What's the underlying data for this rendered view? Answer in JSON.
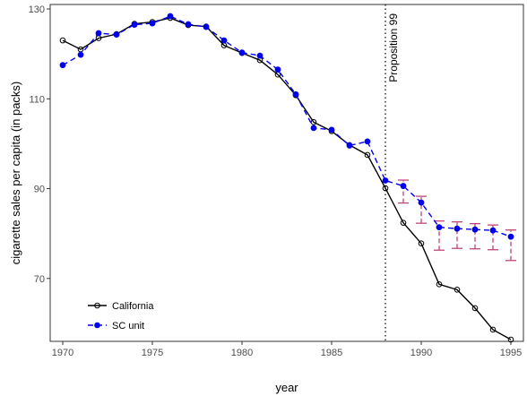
{
  "chart_data": {
    "type": "line",
    "xlabel": "year",
    "ylabel": "cigarette sales per capita (in packs)",
    "xlim": [
      1969.3,
      1995.7
    ],
    "ylim": [
      56,
      131
    ],
    "xticks": [
      1970,
      1975,
      1980,
      1985,
      1990,
      1995
    ],
    "yticks": [
      70,
      90,
      110,
      130
    ],
    "grid": false,
    "legend_position": "bottom-left",
    "x": [
      1970,
      1971,
      1972,
      1973,
      1974,
      1975,
      1976,
      1977,
      1978,
      1979,
      1980,
      1981,
      1982,
      1983,
      1984,
      1985,
      1986,
      1987,
      1988,
      1989,
      1990,
      1991,
      1992,
      1993,
      1994,
      1995
    ],
    "series": [
      {
        "name": "California",
        "color": "#000000",
        "marker": "open-circle",
        "line_style": "solid",
        "values": [
          123.0,
          121.0,
          123.5,
          124.4,
          126.7,
          127.1,
          128.0,
          126.4,
          126.1,
          121.9,
          120.2,
          118.6,
          115.4,
          110.8,
          104.8,
          102.8,
          99.7,
          97.5,
          90.1,
          82.4,
          77.8,
          68.7,
          67.5,
          63.4,
          58.6,
          56.4
        ]
      },
      {
        "name": "SC unit",
        "color": "#0000ee",
        "marker": "filled-circle",
        "line_style": "dashed",
        "values": [
          117.5,
          119.8,
          124.6,
          124.3,
          126.5,
          126.8,
          128.4,
          126.6,
          126.0,
          123.0,
          120.3,
          119.6,
          116.5,
          111.0,
          103.5,
          103.1,
          99.6,
          100.5,
          91.8,
          90.6,
          86.9,
          81.4,
          81.1,
          80.9,
          80.7,
          79.3
        ]
      }
    ],
    "error_bars": {
      "color": "#c0447a",
      "x": [
        1989,
        1990,
        1991,
        1992,
        1993,
        1994,
        1995
      ],
      "lower": [
        86.8,
        82.3,
        76.3,
        76.7,
        76.6,
        76.4,
        74.0
      ],
      "upper": [
        91.9,
        88.3,
        82.8,
        82.6,
        82.2,
        81.9,
        80.8
      ]
    },
    "vline": {
      "x": 1988,
      "style": "dotted",
      "color": "#000000",
      "label": "Proposition 99"
    }
  }
}
